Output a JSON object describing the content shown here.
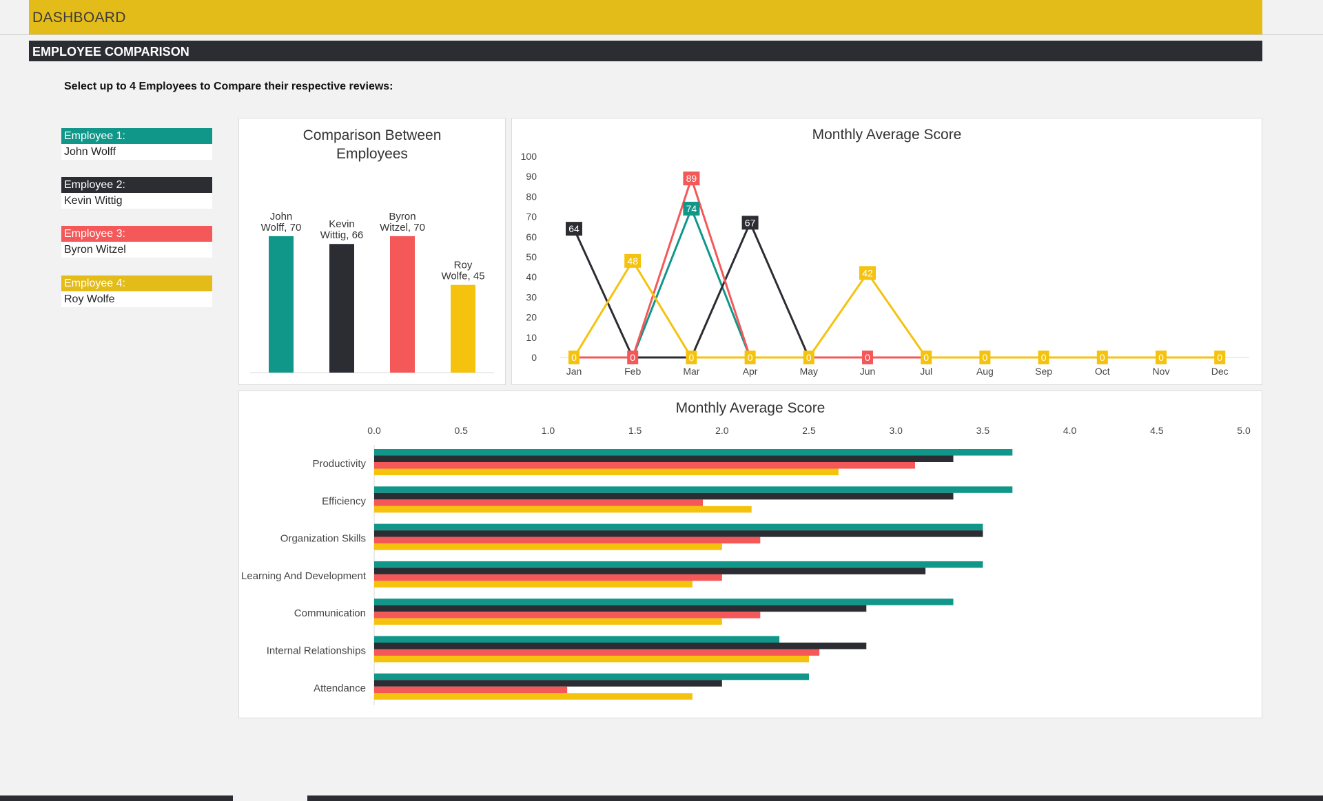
{
  "header": {
    "title": "DASHBOARD"
  },
  "section": {
    "title": "EMPLOYEE COMPARISON"
  },
  "instruction": "Select up to 4 Employees to Compare their respective reviews:",
  "colors": {
    "emp1": "#10978a",
    "emp2": "#2b2d33",
    "emp3": "#f45858",
    "emp4": "#f5c20d"
  },
  "employees": [
    {
      "label": "Employee 1:",
      "name": "John Wolff"
    },
    {
      "label": "Employee 2:",
      "name": "Kevin Wittig"
    },
    {
      "label": "Employee 3:",
      "name": "Byron Witzel"
    },
    {
      "label": "Employee 4:",
      "name": "Roy Wolfe"
    }
  ],
  "chart_data": [
    {
      "type": "bar",
      "title": "Comparison Between Employees",
      "title_lines": [
        "Comparison Between",
        "Employees"
      ],
      "categories": [
        "John Wolff",
        "Kevin Wittig",
        "Byron Witzel",
        "Roy Wolfe"
      ],
      "values": [
        70,
        66,
        70,
        45
      ],
      "data_labels": [
        [
          "John",
          "Wolff, 70"
        ],
        [
          "Kevin",
          "Wittig, 66"
        ],
        [
          "Byron",
          "Witzel, 70"
        ],
        [
          "Roy",
          "Wolfe, 45"
        ]
      ],
      "grid": false
    },
    {
      "type": "line",
      "title": "Monthly Average Score",
      "x": [
        "Jan",
        "Feb",
        "Mar",
        "Apr",
        "May",
        "Jun",
        "Jul",
        "Aug",
        "Sep",
        "Oct",
        "Nov",
        "Dec"
      ],
      "ylim": [
        0,
        100
      ],
      "yticks": [
        0,
        10,
        20,
        30,
        40,
        50,
        60,
        70,
        80,
        90,
        100
      ],
      "series": [
        {
          "values": [
            0,
            0,
            74,
            0,
            0,
            0,
            0,
            0,
            0,
            0,
            0,
            0
          ],
          "labels": [
            null,
            null,
            "74",
            null,
            null,
            null,
            null,
            null,
            null,
            null,
            null,
            null
          ]
        },
        {
          "values": [
            64,
            0,
            0,
            67,
            0,
            0,
            0,
            0,
            0,
            0,
            0,
            0
          ],
          "labels": [
            "64",
            null,
            null,
            "67",
            null,
            null,
            null,
            null,
            null,
            null,
            null,
            null
          ]
        },
        {
          "values": [
            0,
            0,
            89,
            0,
            0,
            0,
            0,
            0,
            0,
            0,
            0,
            0
          ],
          "labels": [
            null,
            "0",
            "89",
            null,
            null,
            "0",
            null,
            null,
            null,
            null,
            null,
            null
          ]
        },
        {
          "values": [
            0,
            48,
            0,
            0,
            0,
            42,
            0,
            0,
            0,
            0,
            0,
            0
          ],
          "labels": [
            "0",
            "48",
            "0",
            "0",
            "0",
            "42",
            "0",
            "0",
            "0",
            "0",
            "0",
            "0"
          ]
        }
      ],
      "grid": false
    },
    {
      "type": "bar",
      "orientation": "horizontal",
      "title": "Monthly Average Score",
      "categories": [
        "Productivity",
        "Efficiency",
        "Organization Skills",
        "Learning And Development",
        "Communication",
        "Internal Relationships",
        "Attendance"
      ],
      "xlim": [
        0,
        5
      ],
      "xticks": [
        "0.0",
        "0.5",
        "1.0",
        "1.5",
        "2.0",
        "2.5",
        "3.0",
        "3.5",
        "4.0",
        "4.5",
        "5.0"
      ],
      "series": [
        {
          "values": [
            3.67,
            3.67,
            3.5,
            3.5,
            3.33,
            2.33,
            2.5
          ]
        },
        {
          "values": [
            3.33,
            3.33,
            3.5,
            3.17,
            2.83,
            2.83,
            2.0
          ]
        },
        {
          "values": [
            3.11,
            1.89,
            2.22,
            2.0,
            2.22,
            2.56,
            1.11
          ]
        },
        {
          "values": [
            2.67,
            2.17,
            2.0,
            1.83,
            2.0,
            2.5,
            1.83
          ]
        }
      ],
      "grid": false
    }
  ]
}
